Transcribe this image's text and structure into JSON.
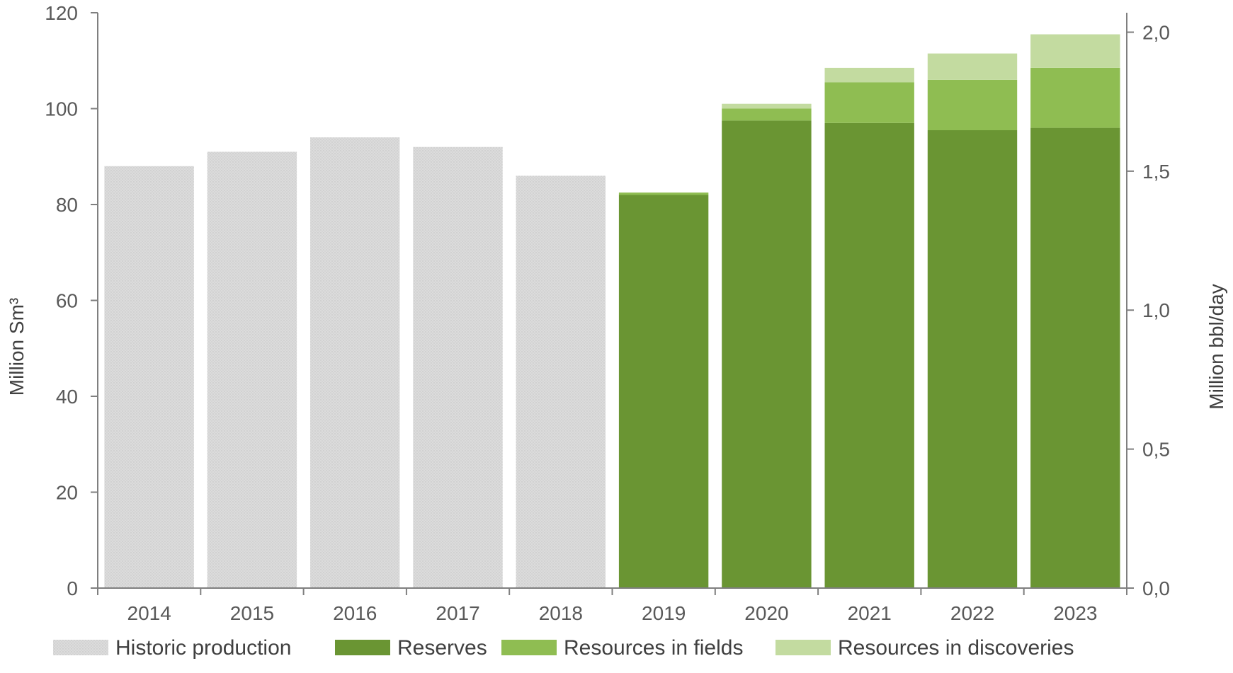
{
  "chart_data": {
    "type": "bar",
    "stacked": true,
    "categories": [
      "2014",
      "2015",
      "2016",
      "2017",
      "2018",
      "2019",
      "2020",
      "2021",
      "2022",
      "2023"
    ],
    "series": [
      {
        "name": "Historic production",
        "color": "#d9d9d9",
        "values": [
          88.0,
          91.0,
          94.0,
          92.0,
          86.0,
          0,
          0,
          0,
          0,
          0
        ]
      },
      {
        "name": "Reserves",
        "color": "#6a9533",
        "values": [
          0,
          0,
          0,
          0,
          0,
          82.0,
          97.5,
          97.0,
          95.5,
          96.0
        ]
      },
      {
        "name": "Resources in fields",
        "color": "#8fbd52",
        "values": [
          0,
          0,
          0,
          0,
          0,
          0.5,
          2.5,
          8.5,
          10.5,
          12.5
        ]
      },
      {
        "name": "Resources in discoveries",
        "color": "#c3dba0",
        "values": [
          0,
          0,
          0,
          0,
          0,
          0,
          1.0,
          3.0,
          5.5,
          7.0
        ]
      }
    ],
    "ylabel": "Million Sm³",
    "ylim": [
      0,
      120
    ],
    "yticks": [
      "0",
      "20",
      "40",
      "60",
      "80",
      "100",
      "120"
    ],
    "y2label": "Million bbl/day",
    "y2lim": [
      0,
      2.07
    ],
    "y2ticks": [
      "0,0",
      "0,5",
      "1,0",
      "1,5",
      "2,0"
    ],
    "grid": false,
    "legend_position": "bottom"
  }
}
